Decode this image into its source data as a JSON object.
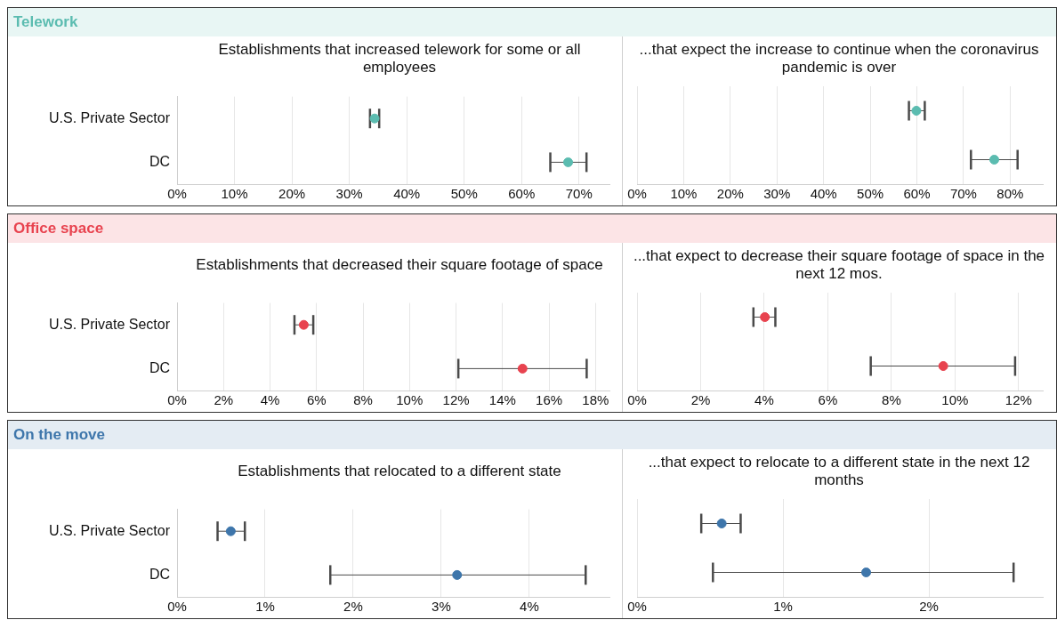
{
  "chart_data": [
    {
      "type": "scatter",
      "orientation": "horizontal",
      "title": "Telework",
      "subtitle": "Establishments that increased telework for some or all employees",
      "categories": [
        "U.S. Private Sector",
        "DC"
      ],
      "values": [
        34.4,
        68.1
      ],
      "errors": [
        [
          33.6,
          35.2
        ],
        [
          65.0,
          71.3
        ]
      ],
      "color": "#5bbcb0",
      "marker": "circle",
      "grid": "x",
      "xlim": [
        0,
        75.3
      ],
      "xticks": [
        {
          "value": 0,
          "label": "0%"
        },
        {
          "value": 10,
          "label": "10%"
        },
        {
          "value": 20,
          "label": "20%"
        },
        {
          "value": 30,
          "label": "30%"
        },
        {
          "value": 40,
          "label": "40%"
        },
        {
          "value": 50,
          "label": "50%"
        },
        {
          "value": 60,
          "label": "60%"
        },
        {
          "value": 70,
          "label": "70%"
        }
      ]
    },
    {
      "type": "scatter",
      "orientation": "horizontal",
      "subtitle": "...that expect the increase to continue when the coronavirus pandemic is over",
      "categories": [
        null,
        null
      ],
      "values": [
        59.9,
        76.6
      ],
      "errors": [
        [
          58.3,
          61.7
        ],
        [
          71.6,
          81.6
        ]
      ],
      "color": "#5bbcb0",
      "marker": "circle",
      "grid": "x",
      "tick_labels": "x",
      "xlim": [
        0,
        87
      ],
      "xticks": [
        {
          "value": 0,
          "label": "0%"
        },
        {
          "value": 10,
          "label": "10%"
        },
        {
          "value": 20,
          "label": "20%"
        },
        {
          "value": 30,
          "label": "30%"
        },
        {
          "value": 40,
          "label": "40%"
        },
        {
          "value": 50,
          "label": "50%"
        },
        {
          "value": 60,
          "label": "60%"
        },
        {
          "value": 70,
          "label": "70%"
        },
        {
          "value": 80,
          "label": "80%"
        }
      ]
    },
    {
      "type": "scatter",
      "orientation": "horizontal",
      "title": "Office space",
      "subtitle": "Establishments that decreased their square footage of space",
      "categories": [
        "U.S. Private Sector",
        "DC"
      ],
      "values": [
        5.45,
        14.86
      ],
      "errors": [
        [
          5.05,
          5.86
        ],
        [
          12.1,
          17.62
        ]
      ],
      "color": "#e8434f",
      "marker": "circle",
      "grid": "x",
      "xlim": [
        0,
        18.6
      ],
      "xticks": [
        {
          "value": 0,
          "label": "0%"
        },
        {
          "value": 2,
          "label": "2%"
        },
        {
          "value": 4,
          "label": "4%"
        },
        {
          "value": 6,
          "label": "6%"
        },
        {
          "value": 8,
          "label": "8%"
        },
        {
          "value": 10,
          "label": "10%"
        },
        {
          "value": 12,
          "label": "12%"
        },
        {
          "value": 14,
          "label": "14%"
        },
        {
          "value": 16,
          "label": "16%"
        },
        {
          "value": 18,
          "label": "18%"
        }
      ]
    },
    {
      "type": "scatter",
      "orientation": "horizontal",
      "subtitle": "...that expect to decrease their square footage of space in the next 12 mos.",
      "categories": [
        null,
        null
      ],
      "values": [
        4.02,
        9.63
      ],
      "errors": [
        [
          3.66,
          4.35
        ],
        [
          7.35,
          11.89
        ]
      ],
      "color": "#e8434f",
      "marker": "circle",
      "grid": "x",
      "tick_labels": "x",
      "xlim": [
        0,
        12.76
      ],
      "xticks": [
        {
          "value": 0,
          "label": "0%"
        },
        {
          "value": 2,
          "label": "2%"
        },
        {
          "value": 4,
          "label": "4%"
        },
        {
          "value": 6,
          "label": "6%"
        },
        {
          "value": 8,
          "label": "8%"
        },
        {
          "value": 10,
          "label": "10%"
        },
        {
          "value": 12,
          "label": "12%"
        }
      ]
    },
    {
      "type": "scatter",
      "orientation": "horizontal",
      "title": "On the move",
      "subtitle": "Establishments that relocated to a different state",
      "categories": [
        "U.S. Private Sector",
        "DC"
      ],
      "values": [
        0.61,
        3.18
      ],
      "errors": [
        [
          0.46,
          0.77
        ],
        [
          1.74,
          4.64
        ]
      ],
      "color": "#3e76ab",
      "marker": "circle",
      "grid": "x",
      "xlim": [
        0,
        4.91
      ],
      "xticks": [
        {
          "value": 0,
          "label": "0%"
        },
        {
          "value": 1,
          "label": "1%"
        },
        {
          "value": 2,
          "label": "2%"
        },
        {
          "value": 3,
          "label": "3%"
        },
        {
          "value": 4,
          "label": "4%"
        }
      ]
    },
    {
      "type": "scatter",
      "orientation": "horizontal",
      "subtitle": "...that expect to relocate to a different state in the next 12 months",
      "categories": [
        null,
        null
      ],
      "values": [
        0.58,
        1.57
      ],
      "errors": [
        [
          0.44,
          0.71
        ],
        [
          0.52,
          2.58
        ]
      ],
      "color": "#3e76ab",
      "marker": "circle",
      "grid": "x",
      "tick_labels": "x",
      "xlim": [
        0,
        2.78
      ],
      "xticks": [
        {
          "value": 0,
          "label": "0%"
        },
        {
          "value": 1,
          "label": "1%"
        },
        {
          "value": 2,
          "label": "2%"
        }
      ]
    }
  ]
}
